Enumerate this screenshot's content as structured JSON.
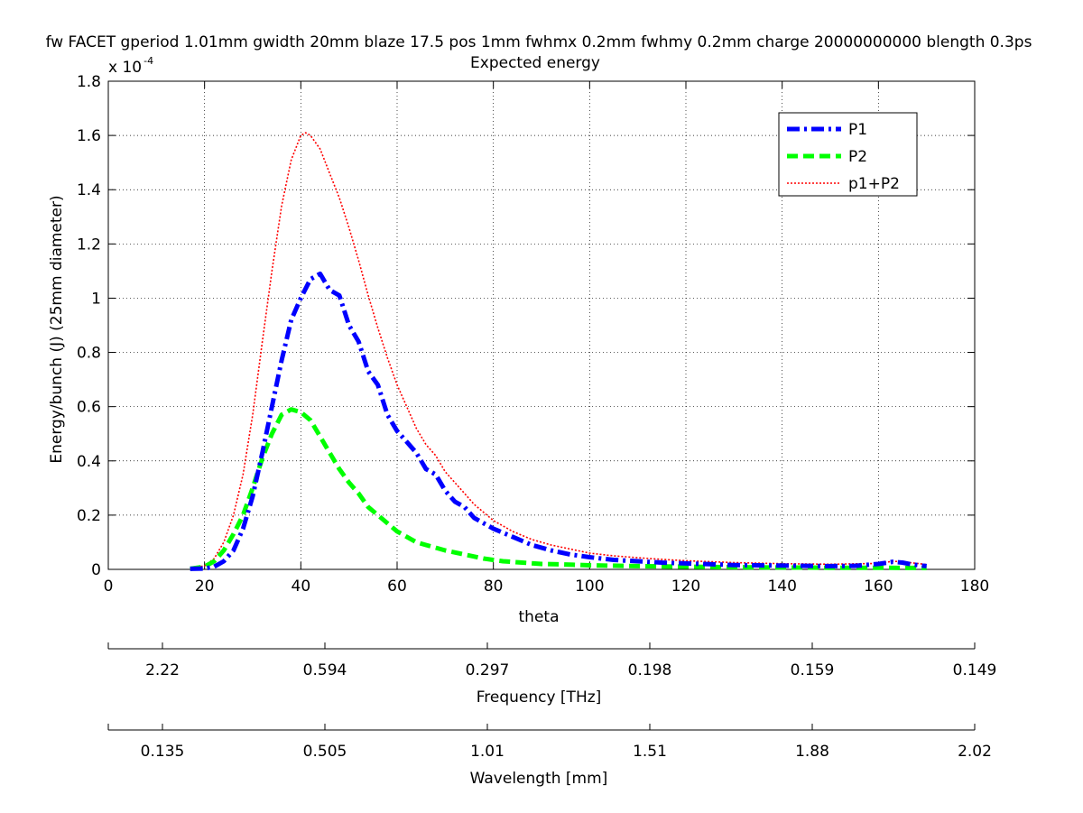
{
  "chart_data": {
    "type": "line",
    "title": "fw FACET gperiod 1.01mm gwidth 20mm blaze 17.5 pos 1mm fwhmx 0.2mm fwhmy 0.2mm charge 20000000000 blength 0.3ps",
    "subtitle": "Expected energy",
    "xlabel": "theta",
    "ylabel": "Energy/bunch (J)  (25mm diameter)",
    "y_multiplier_base": "x 10",
    "y_multiplier_exp": "-4",
    "xlim": [
      0,
      180
    ],
    "ylim": [
      0,
      1.8
    ],
    "x_ticks": [
      0,
      20,
      40,
      60,
      80,
      100,
      120,
      140,
      160,
      180
    ],
    "y_ticks": [
      0,
      0.2,
      0.4,
      0.6,
      0.8,
      1,
      1.2,
      1.4,
      1.6,
      1.8
    ],
    "grid": true,
    "legend_position": "top-right",
    "series": [
      {
        "name": "P1",
        "color": "#0000ff",
        "style": "dash-dot",
        "x": [
          17,
          20,
          22,
          24,
          26,
          28,
          30,
          32,
          34,
          36,
          38,
          40,
          42,
          44,
          46,
          48,
          50,
          52,
          54,
          56,
          58,
          60,
          62,
          64,
          66,
          68,
          70,
          72,
          74,
          76,
          78,
          80,
          84,
          88,
          92,
          96,
          100,
          105,
          110,
          115,
          120,
          125,
          130,
          135,
          140,
          145,
          150,
          155,
          160,
          163,
          165,
          167,
          170
        ],
        "y": [
          0.002,
          0.003,
          0.01,
          0.03,
          0.07,
          0.15,
          0.27,
          0.43,
          0.6,
          0.77,
          0.92,
          1.0,
          1.07,
          1.09,
          1.03,
          1.01,
          0.9,
          0.84,
          0.73,
          0.68,
          0.57,
          0.51,
          0.47,
          0.43,
          0.37,
          0.35,
          0.29,
          0.25,
          0.23,
          0.19,
          0.17,
          0.15,
          0.12,
          0.09,
          0.07,
          0.055,
          0.045,
          0.035,
          0.03,
          0.025,
          0.022,
          0.019,
          0.016,
          0.015,
          0.014,
          0.013,
          0.012,
          0.013,
          0.02,
          0.028,
          0.025,
          0.018,
          0.012
        ]
      },
      {
        "name": "P2",
        "color": "#00ff00",
        "style": "dashed",
        "x": [
          17,
          20,
          22,
          24,
          26,
          28,
          30,
          32,
          34,
          36,
          38,
          40,
          42,
          44,
          46,
          48,
          50,
          52,
          54,
          56,
          58,
          60,
          62,
          64,
          66,
          68,
          70,
          74,
          78,
          82,
          86,
          90,
          95,
          100,
          110,
          120,
          130,
          140,
          150,
          160,
          170
        ],
        "y": [
          0.002,
          0.01,
          0.03,
          0.07,
          0.13,
          0.2,
          0.3,
          0.41,
          0.5,
          0.57,
          0.59,
          0.58,
          0.55,
          0.49,
          0.43,
          0.37,
          0.32,
          0.28,
          0.23,
          0.2,
          0.17,
          0.14,
          0.12,
          0.1,
          0.09,
          0.08,
          0.07,
          0.055,
          0.04,
          0.03,
          0.025,
          0.02,
          0.018,
          0.015,
          0.012,
          0.01,
          0.008,
          0.007,
          0.006,
          0.006,
          0.005
        ]
      },
      {
        "name": "p1+P2",
        "color": "#ff0000",
        "style": "dotted",
        "x": [
          17,
          20,
          22,
          24,
          26,
          28,
          30,
          32,
          34,
          36,
          38,
          40,
          41,
          42,
          44,
          46,
          48,
          50,
          52,
          54,
          56,
          58,
          60,
          62,
          64,
          66,
          68,
          70,
          72,
          74,
          76,
          78,
          80,
          84,
          88,
          92,
          96,
          100,
          105,
          110,
          115,
          120,
          130,
          140,
          150,
          160,
          163,
          165,
          170
        ],
        "y": [
          0.004,
          0.013,
          0.04,
          0.1,
          0.2,
          0.35,
          0.57,
          0.84,
          1.1,
          1.34,
          1.51,
          1.6,
          1.61,
          1.6,
          1.55,
          1.46,
          1.37,
          1.26,
          1.14,
          1.01,
          0.89,
          0.78,
          0.68,
          0.6,
          0.52,
          0.46,
          0.42,
          0.36,
          0.32,
          0.28,
          0.24,
          0.21,
          0.18,
          0.14,
          0.11,
          0.09,
          0.075,
          0.06,
          0.05,
          0.043,
          0.037,
          0.032,
          0.025,
          0.021,
          0.019,
          0.022,
          0.03,
          0.028,
          0.018
        ]
      }
    ],
    "frequency_axis": {
      "label": "Frequency [THz]",
      "tick_labels": [
        "2.22",
        "0.594",
        "0.297",
        "0.198",
        "0.159",
        "0.149"
      ]
    },
    "wavelength_axis": {
      "label": "Wavelength [mm]",
      "tick_labels": [
        "0.135",
        "0.505",
        "1.01",
        "1.51",
        "1.88",
        "2.02"
      ]
    }
  }
}
